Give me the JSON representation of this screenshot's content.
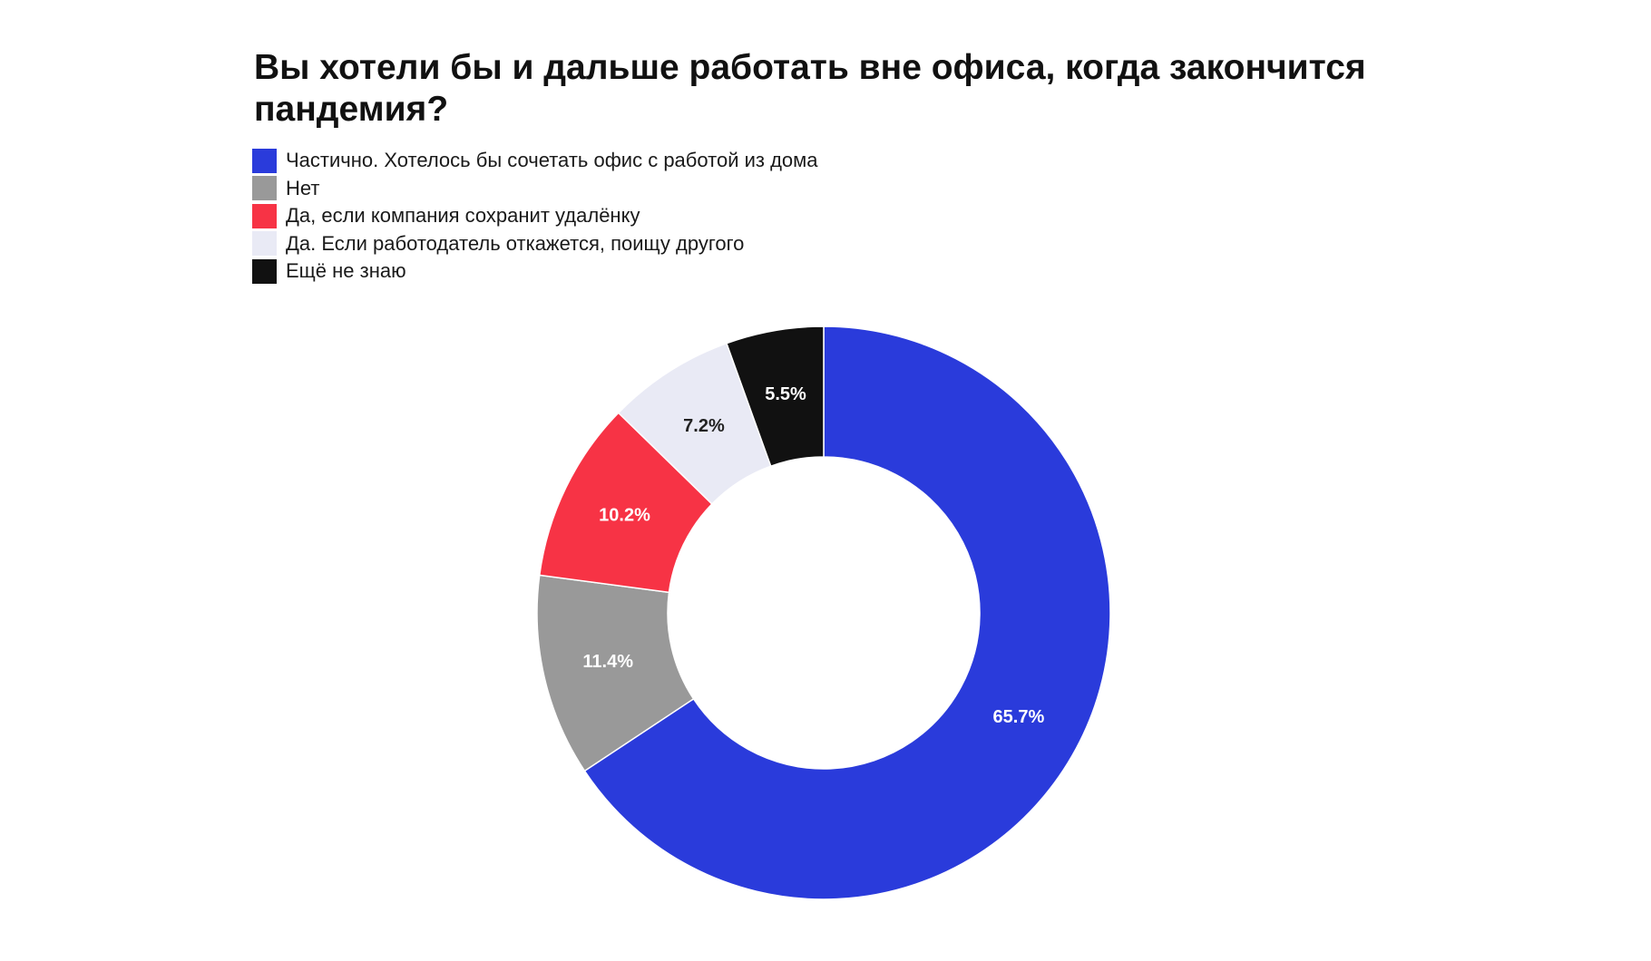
{
  "chart_data": {
    "type": "pie",
    "title": "Вы хотели бы и дальше работать вне офиса, когда закончится пандемия?",
    "legend_position": "top-left",
    "slices": [
      {
        "label": "Частично. Хотелось бы сочетать офис с работой из дома",
        "value": 65.7,
        "value_label": "65.7%",
        "color": "#2a3bdb",
        "text_color": "#ffffff"
      },
      {
        "label": "Нет",
        "value": 11.4,
        "value_label": "11.4%",
        "color": "#999999",
        "text_color": "#ffffff"
      },
      {
        "label": "Да, если компания сохранит удалёнку",
        "value": 10.2,
        "value_label": "10.2%",
        "color": "#f73345",
        "text_color": "#ffffff"
      },
      {
        "label": "Да. Если работодатель откажется, поищу другого",
        "value": 7.2,
        "value_label": "7.2%",
        "color": "#e9eaf5",
        "text_color": "#222222"
      },
      {
        "label": "Ещё не знаю",
        "value": 5.5,
        "value_label": "5.5%",
        "color": "#111111",
        "text_color": "#ffffff"
      }
    ]
  }
}
